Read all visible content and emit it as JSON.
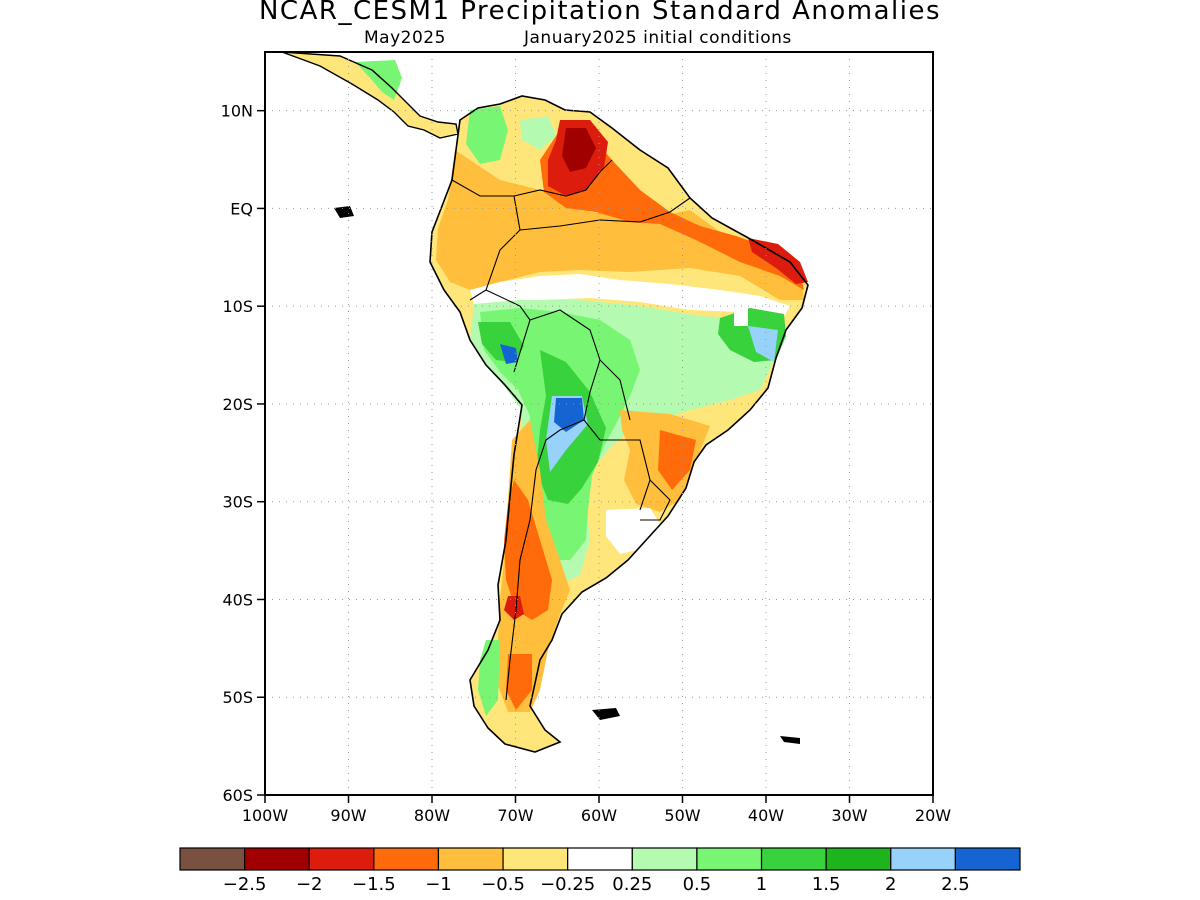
{
  "header": {
    "title": "NCAR_CESM1 Precipitation Standard Anomalies",
    "valid_month": "May2025",
    "init": "January2025 initial conditions"
  },
  "axes": {
    "lat_labels": [
      "10N",
      "EQ",
      "10S",
      "20S",
      "30S",
      "40S",
      "50S",
      "60S"
    ],
    "lat_values": [
      10,
      0,
      -10,
      -20,
      -30,
      -40,
      -50,
      -60
    ],
    "lon_labels": [
      "100W",
      "90W",
      "80W",
      "70W",
      "60W",
      "50W",
      "40W",
      "30W",
      "20W"
    ],
    "lon_values": [
      -100,
      -90,
      -80,
      -70,
      -60,
      -50,
      -40,
      -30,
      -20
    ],
    "lat_range": [
      -60,
      16
    ],
    "lon_range": [
      -100,
      -20
    ],
    "grid": "dotted"
  },
  "colorbar": {
    "colors": [
      "#7a5141",
      "#a00000",
      "#dc1c0c",
      "#ff6a0a",
      "#ffbe3c",
      "#ffe67a",
      "#ffffff",
      "#b4fab0",
      "#78f573",
      "#37d23c",
      "#1eb41e",
      "#96d2fa",
      "#1464d2"
    ],
    "labels": [
      "−2.5",
      "−2",
      "−1.5",
      "−1",
      "−0.5",
      "−0.25",
      "0.25",
      "0.5",
      "1",
      "1.5",
      "2",
      "2.5"
    ]
  },
  "map": {
    "region": "South America",
    "palette": {
      "land_base": "#ffe67a",
      "outline": "#000000"
    }
  }
}
